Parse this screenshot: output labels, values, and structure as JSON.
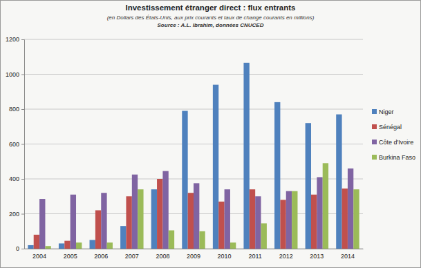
{
  "chart_data": {
    "type": "bar",
    "title": "Investissement étranger direct : flux entrants",
    "subtitle": "(en Dollars des États-Unis, aux prix courants et taux de change courants en millions)",
    "source": "Source : A.L. Ibrahim, données CNUCED",
    "categories": [
      "2004",
      "2005",
      "2006",
      "2007",
      "2008",
      "2009",
      "2010",
      "2011",
      "2012",
      "2013",
      "2014"
    ],
    "series": [
      {
        "name": "Niger",
        "color": "#4f81bd",
        "values": [
          20,
          30,
          50,
          130,
          340,
          790,
          940,
          1066,
          840,
          720,
          770
        ]
      },
      {
        "name": "Sénégal",
        "color": "#c0504d",
        "values": [
          80,
          45,
          220,
          300,
          400,
          320,
          270,
          340,
          280,
          310,
          345
        ]
      },
      {
        "name": "Côte d'Ivoire",
        "color": "#8064a2",
        "values": [
          285,
          310,
          320,
          425,
          445,
          375,
          340,
          300,
          330,
          410,
          460
        ]
      },
      {
        "name": "Burkina Faso",
        "color": "#9bbb59",
        "values": [
          15,
          35,
          35,
          340,
          105,
          100,
          35,
          145,
          330,
          490,
          340
        ]
      }
    ],
    "ylim": [
      0,
      1200
    ],
    "yticks": [
      0,
      200,
      400,
      600,
      800,
      1000,
      1200
    ],
    "grid": true,
    "legend": "right"
  }
}
